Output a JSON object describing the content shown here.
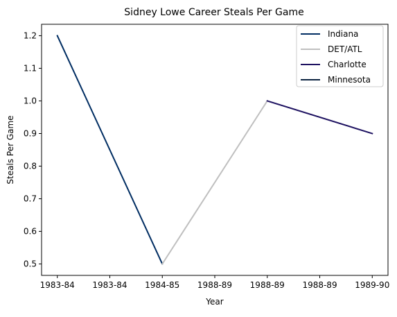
{
  "chart_data": {
    "type": "line",
    "title": "Sidney Lowe Career Steals Per Game",
    "xlabel": "Year",
    "ylabel": "Steals Per Game",
    "x_ticks": [
      "1983-84",
      "1983-84",
      "1984-85",
      "1988-89",
      "1988-89",
      "1988-89",
      "1989-90"
    ],
    "y_ticks": [
      "0.5",
      "0.6",
      "0.7",
      "0.8",
      "0.9",
      "1.0",
      "1.1",
      "1.2"
    ],
    "ylim": [
      0.465,
      1.235
    ],
    "xlim": [
      -0.3,
      6.3
    ],
    "grid": false,
    "legend_position": "top-right",
    "series": [
      {
        "name": "Indiana",
        "color": "#002d62",
        "x": [
          0,
          2
        ],
        "y": [
          1.2,
          0.5
        ]
      },
      {
        "name": "DET/ATL",
        "color": "#bfbfbf",
        "x": [
          2,
          4
        ],
        "y": [
          0.5,
          1.0
        ]
      },
      {
        "name": "Charlotte",
        "color": "#1d1160",
        "x": [
          4,
          6
        ],
        "y": [
          1.0,
          0.9
        ]
      },
      {
        "name": "Minnesota",
        "color": "#0c2340",
        "x": [],
        "y": []
      }
    ]
  }
}
